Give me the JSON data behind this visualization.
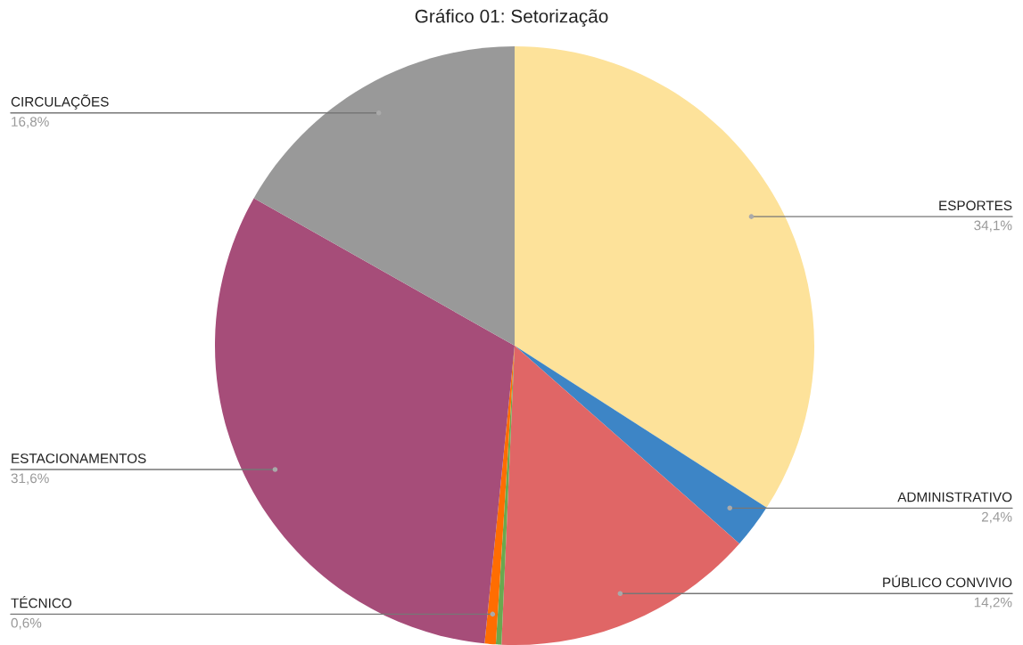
{
  "chart_data": {
    "type": "pie",
    "title": "Gráfico 01: Setorização",
    "categories": [
      "ESPORTES",
      "ADMINISTRATIVO",
      "PÚBLICO CONVIVIO",
      null,
      "TÉCNICO",
      "ESTACIONAMENTOS",
      "CIRCULAÇÕES"
    ],
    "values": [
      34.1,
      2.4,
      14.2,
      0.3,
      0.6,
      31.6,
      16.8
    ],
    "value_labels": [
      "34,1%",
      "2,4%",
      "14,2%",
      null,
      "0,6%",
      "31,6%",
      "16,8%"
    ],
    "colors": [
      "#fde29a",
      "#3d85c6",
      "#e06666",
      "#6aa84f",
      "#ff6d01",
      "#a64d79",
      "#999999"
    ],
    "legend": false
  }
}
